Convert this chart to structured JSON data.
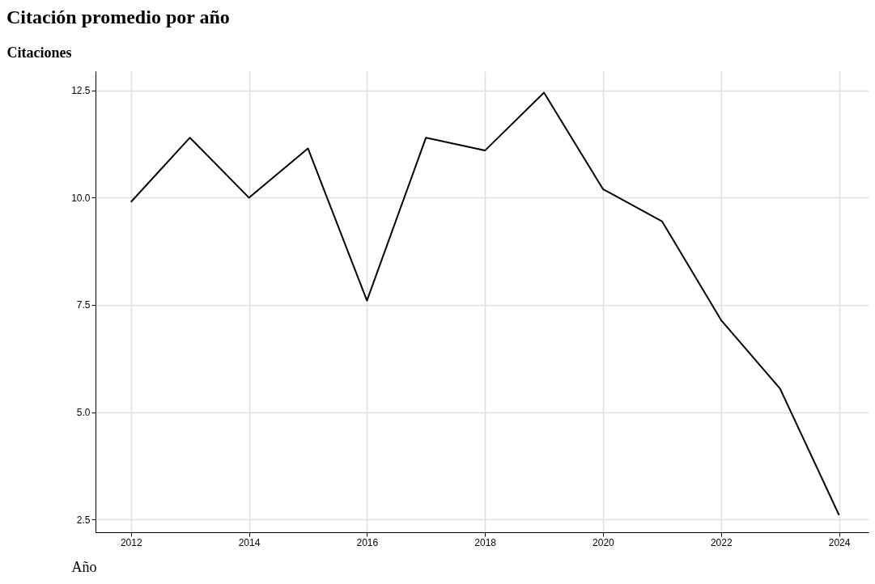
{
  "chart_data": {
    "type": "line",
    "title": "Citación promedio por año",
    "xlabel": "Año",
    "ylabel": "Citaciones",
    "x": [
      2012,
      2013,
      2014,
      2015,
      2016,
      2017,
      2018,
      2019,
      2020,
      2021,
      2022,
      2023,
      2024
    ],
    "series": [
      {
        "color": "#000000",
        "values": [
          9.9,
          11.4,
          10.0,
          11.15,
          7.6,
          11.4,
          11.1,
          12.45,
          10.2,
          9.45,
          7.15,
          5.55,
          2.6
        ]
      }
    ],
    "xlim": [
      2011.4,
      2024.5
    ],
    "xticks": [
      2012,
      2014,
      2016,
      2018,
      2020,
      2022,
      2024
    ],
    "ylim": [
      2.2,
      12.95
    ],
    "yticks": [
      {
        "value": 2.5,
        "label": "2.5"
      },
      {
        "value": 5,
        "label": "5.0"
      },
      {
        "value": 7.5,
        "label": "7.5"
      },
      {
        "value": 10,
        "label": "10.0"
      },
      {
        "value": 12.5,
        "label": "12.5"
      }
    ],
    "grid": true,
    "marker": "none",
    "line_style": "solid"
  }
}
